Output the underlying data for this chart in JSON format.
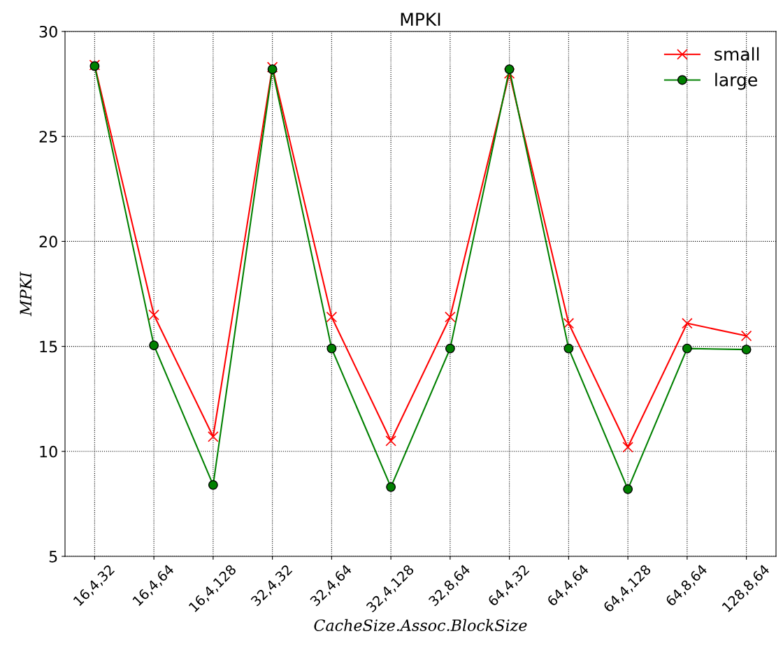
{
  "chart_data": {
    "type": "line",
    "title": "MPKI",
    "xlabel": "CacheSize.Assoc.BlockSize",
    "ylabel": "MPKI",
    "categories": [
      "16,4,32",
      "16,4,64",
      "16,4,128",
      "32,4,32",
      "32,4,64",
      "32,4,128",
      "32,8,64",
      "64,4,32",
      "64,4,64",
      "64,4,128",
      "64,8,64",
      "128,8,64"
    ],
    "series": [
      {
        "name": "small",
        "color": "#ff0000",
        "marker": "cross",
        "values": [
          28.4,
          16.5,
          10.7,
          28.3,
          16.4,
          10.5,
          16.4,
          28.0,
          16.1,
          10.2,
          16.1,
          15.5
        ]
      },
      {
        "name": "large",
        "color": "#008000",
        "marker": "circle",
        "values": [
          28.35,
          15.05,
          8.4,
          28.2,
          14.9,
          8.3,
          14.9,
          28.2,
          14.9,
          8.2,
          14.9,
          14.85
        ]
      }
    ],
    "ylim": [
      5,
      30
    ],
    "yticks": [
      5,
      10,
      15,
      20,
      25,
      30
    ],
    "grid": true,
    "legend": "top right"
  }
}
